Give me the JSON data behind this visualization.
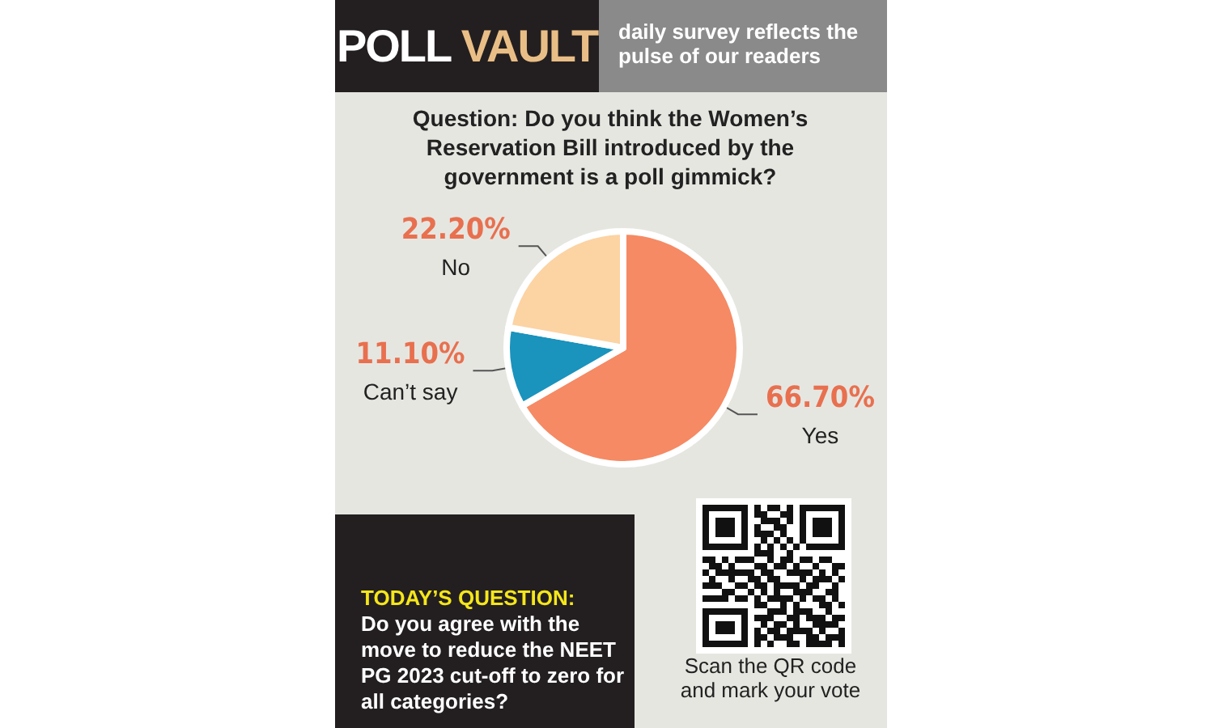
{
  "chart_data": {
    "type": "pie",
    "title": "POLL VAULT",
    "subtitle": "daily survey reflects the pulse of our readers",
    "categories": [
      "Yes",
      "Can’t say",
      "No"
    ],
    "values": [
      66.7,
      11.1,
      22.2
    ],
    "value_labels": [
      "66.70%",
      "11.10%",
      "22.20%"
    ],
    "colors": [
      "#f58a64",
      "#1a93bd",
      "#fcd3a3"
    ],
    "annotations": [
      "Question: Do you think the Women’s Reservation Bill introduced by the government is a poll gimmick?",
      "TODAY’S QUESTION:",
      "Do you agree with the move to reduce the NEET PG 2023 cut-off to zero for all categories?",
      "Scan the QR code and mark your vote"
    ]
  }
}
